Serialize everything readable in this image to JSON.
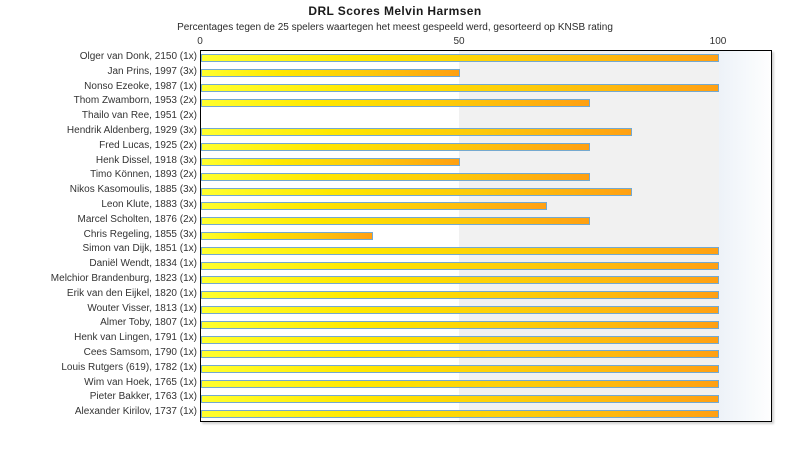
{
  "chart": {
    "title": "DRL Scores Melvin Harmsen",
    "subtitle": "Percentages tegen de 25 spelers waartegen het meest gespeeld werd, gesorteerd op KNSB rating"
  },
  "chart_data": {
    "type": "bar",
    "orientation": "horizontal",
    "title": "DRL Scores Melvin Harmsen",
    "subtitle": "Percentages tegen de 25 spelers waartegen het meest gespeeld werd, gesorteerd op KNSB rating",
    "xlabel": "",
    "ylabel": "",
    "xlim": [
      0,
      110
    ],
    "xticks": [
      0,
      50,
      100
    ],
    "legend": false,
    "grid": false,
    "categories": [
      "Olger van Donk, 2150 (1x)",
      "Jan Prins, 1997 (3x)",
      "Nonso Ezeoke, 1987 (1x)",
      "Thom Zwamborn, 1953 (2x)",
      "Thailo van Ree, 1951 (2x)",
      "Hendrik Aldenberg, 1929 (3x)",
      "Fred Lucas, 1925 (2x)",
      "Henk Dissel, 1918 (3x)",
      "Timo Können, 1893 (2x)",
      "Nikos Kasomoulis, 1885 (3x)",
      "Leon Klute, 1883 (3x)",
      "Marcel Scholten, 1876 (2x)",
      "Chris Regeling, 1855 (3x)",
      "Simon van Dijk, 1851 (1x)",
      "Daniël Wendt, 1834 (1x)",
      "Melchior Brandenburg, 1823 (1x)",
      "Erik van den Eijkel, 1820 (1x)",
      "Wouter Visser, 1813 (1x)",
      "Almer Toby, 1807 (1x)",
      "Henk van Lingen, 1791 (1x)",
      "Cees Samsom, 1790 (1x)",
      "Louis Rutgers (619), 1782 (1x)",
      "Wim van Hoek, 1765 (1x)",
      "Pieter Bakker, 1763 (1x)",
      "Alexander Kirilov, 1737 (1x)"
    ],
    "values": [
      100,
      50,
      100,
      75,
      0,
      83.3,
      75,
      50,
      75,
      83.3,
      66.7,
      75,
      33.3,
      100,
      100,
      100,
      100,
      100,
      100,
      100,
      100,
      100,
      100,
      100,
      100
    ],
    "colors": {
      "bar_gradient_start": "#ffff2e",
      "bar_gradient_end": "#ffa013",
      "bar_border": "#74a9d0",
      "band_50_100": "#f1f1f1",
      "plot_border": "#000000",
      "text": "#333333"
    }
  }
}
